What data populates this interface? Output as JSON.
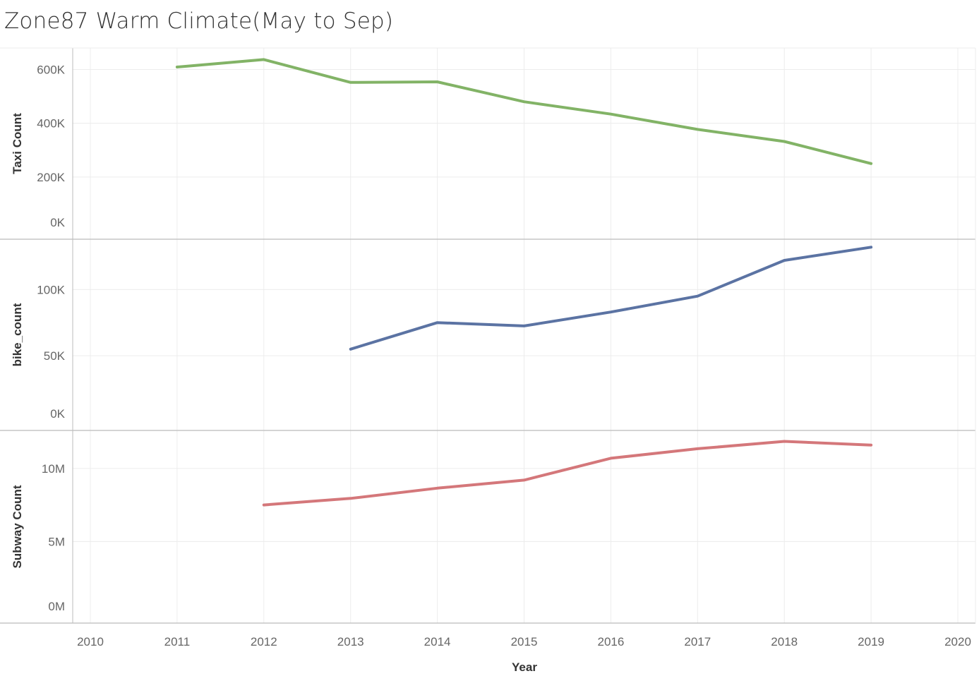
{
  "title": "Zone87 Warm Climate(May to Sep)",
  "colors": {
    "taxi": "#82b366",
    "bike": "#5b73a3",
    "subway": "#d4777a",
    "grid": "#ececec",
    "axis_line": "#bbbbbb"
  },
  "chart_data": {
    "type": "line",
    "xlabel": "Year",
    "xlim": [
      2010,
      2020
    ],
    "x_ticks": [
      "2010",
      "2011",
      "2012",
      "2013",
      "2014",
      "2015",
      "2016",
      "2017",
      "2018",
      "2019",
      "2020"
    ],
    "grid": true,
    "series": [
      {
        "name": "Taxi Count",
        "ylabel": "Taxi Count",
        "ylim": [
          0,
          680000
        ],
        "y_ticks": [
          0,
          200000,
          400000,
          600000
        ],
        "y_tick_labels": [
          "0K",
          "200K",
          "400K",
          "600K"
        ],
        "x": [
          2011,
          2012,
          2013,
          2014,
          2015,
          2016,
          2017,
          2018,
          2019
        ],
        "values": [
          609000,
          637000,
          552000,
          554000,
          480000,
          434000,
          377000,
          332000,
          250000
        ]
      },
      {
        "name": "bike_count",
        "ylabel": "bike_count",
        "ylim": [
          0,
          138000
        ],
        "y_ticks": [
          0,
          50000,
          100000
        ],
        "y_tick_labels": [
          "0K",
          "50K",
          "100K"
        ],
        "x": [
          2013,
          2014,
          2015,
          2016,
          2017,
          2018,
          2019
        ],
        "values": [
          55000,
          75000,
          72500,
          83000,
          95000,
          122000,
          132000
        ]
      },
      {
        "name": "Subway Count",
        "ylabel": "Subway Count",
        "ylim": [
          0,
          12600000
        ],
        "y_ticks": [
          0,
          5000000,
          10000000
        ],
        "y_tick_labels": [
          "0M",
          "5M",
          "10M"
        ],
        "x": [
          2012,
          2013,
          2014,
          2015,
          2016,
          2017,
          2018,
          2019
        ],
        "values": [
          7500000,
          7950000,
          8650000,
          9200000,
          10700000,
          11350000,
          11850000,
          11600000
        ]
      }
    ]
  }
}
